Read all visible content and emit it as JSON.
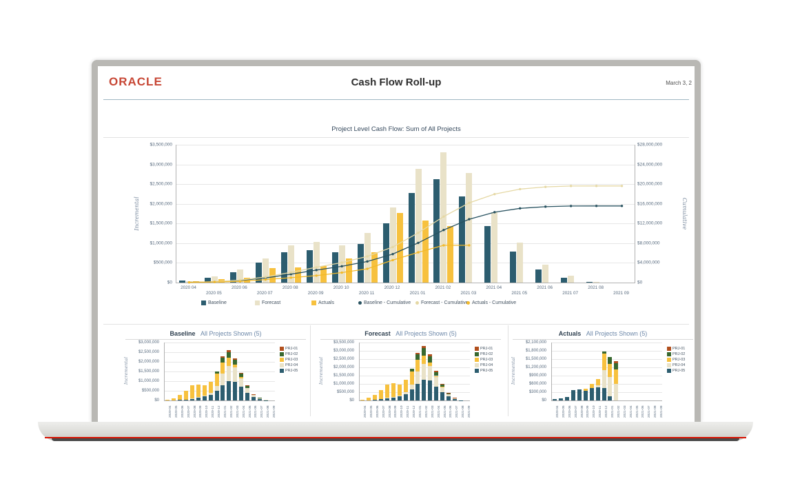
{
  "header": {
    "brand": "ORACLE",
    "title": "Cash Flow Roll-up",
    "date": "March 3, 2"
  },
  "chart_data": [
    {
      "type": "bar",
      "title": "Project Level Cash Flow: Sum of All Projects",
      "ylabel_left": "Incremental",
      "ylabel_right": "Cumulative",
      "ylim_left": [
        0,
        3500000
      ],
      "ylim_right": [
        0,
        28000000
      ],
      "grid": "horizontal",
      "legend_position": "bottom",
      "y_left_ticks": [
        "$3,500,000",
        "$3,000,000",
        "$2,500,000",
        "$2,000,000",
        "$1,500,000",
        "$1,000,000",
        "$500,000",
        "$0"
      ],
      "y_right_ticks": [
        "$28,000,000",
        "$24,000,000",
        "$20,000,000",
        "$16,000,000",
        "$12,000,000",
        "$8,000,000",
        "$4,000,000",
        "$0"
      ],
      "categories": [
        "2020 04",
        "2020 05",
        "2020 06",
        "2020 07",
        "2020 08",
        "2020 09",
        "2020 10",
        "2020 11",
        "2020 12",
        "2021 01",
        "2021 02",
        "2021 03",
        "2021 04",
        "2021 05",
        "2021 06",
        "2021 07",
        "2021 08",
        "2021 09"
      ],
      "bar_series": [
        {
          "name": "Baseline",
          "color": "#2c5d6f",
          "values": [
            50000,
            120000,
            270000,
            500000,
            770000,
            830000,
            770000,
            980000,
            1500000,
            2270000,
            2620000,
            2190000,
            1430000,
            780000,
            340000,
            130000,
            20000,
            0
          ]
        },
        {
          "name": "Forecast",
          "color": "#e9e2c8",
          "values": [
            30000,
            150000,
            330000,
            620000,
            940000,
            1040000,
            950000,
            1260000,
            1900000,
            2890000,
            3300000,
            2780000,
            1780000,
            1010000,
            460000,
            180000,
            10000,
            0
          ]
        },
        {
          "name": "Actuals",
          "color": "#f7c13e",
          "values": [
            40000,
            80000,
            120000,
            370000,
            390000,
            415000,
            610000,
            770000,
            1770000,
            1580000,
            1430000,
            null,
            null,
            null,
            null,
            null,
            null,
            null
          ]
        }
      ],
      "line_series": [
        {
          "name": "Baseline - Cumulative",
          "color": "#27515f",
          "values": [
            50000,
            170000,
            440000,
            940000,
            1710000,
            2540000,
            3310000,
            4290000,
            5790000,
            8060000,
            10680000,
            12870000,
            14300000,
            15080000,
            15420000,
            15550000,
            15570000,
            15570000
          ]
        },
        {
          "name": "Forecast - Cumulative",
          "color": "#e5d8a4",
          "values": [
            30000,
            180000,
            510000,
            1130000,
            2070000,
            3110000,
            4060000,
            5320000,
            7220000,
            10110000,
            13410000,
            16190000,
            17970000,
            18980000,
            19440000,
            19620000,
            19630000,
            19630000
          ]
        },
        {
          "name": "Actuals - Cumulative",
          "color": "#f2b929",
          "values": [
            40000,
            120000,
            240000,
            610000,
            1000000,
            1415000,
            2025000,
            2795000,
            4565000,
            6145000,
            7575000,
            7575000,
            null,
            null,
            null,
            null,
            null,
            null
          ]
        }
      ]
    },
    {
      "type": "bar",
      "stacked": true,
      "title": "Baseline",
      "subtitle": "All Projects Shown (5)",
      "ylabel": "Incremental",
      "ylim": [
        0,
        3000000
      ],
      "grid": "horizontal",
      "legend_position": "right",
      "y_ticks": [
        "$3,000,000",
        "$2,500,000",
        "$2,000,000",
        "$1,500,000",
        "$1,000,000",
        "$500,000",
        "$0"
      ],
      "categories": [
        "2020-04",
        "2020-05",
        "2020-06",
        "2020-07",
        "2020-08",
        "2020-09",
        "2020-10",
        "2020-11",
        "2020-12",
        "2021-01",
        "2021-02",
        "2021-03",
        "2021-04",
        "2021-05",
        "2021-06",
        "2021-07",
        "2021-08",
        "2021-09"
      ],
      "series": [
        {
          "name": "PRJ-01",
          "color": "#b14f1d",
          "values": [
            0,
            0,
            0,
            0,
            0,
            0,
            0,
            0,
            0,
            70000,
            120000,
            90000,
            50000,
            30000,
            10000,
            0,
            0,
            0
          ]
        },
        {
          "name": "PRJ-02",
          "color": "#38682f",
          "values": [
            0,
            0,
            0,
            0,
            0,
            0,
            0,
            0,
            100000,
            250000,
            300000,
            250000,
            180000,
            100000,
            50000,
            20000,
            0,
            0
          ]
        },
        {
          "name": "PRJ-03",
          "color": "#f7c13e",
          "values": [
            50000,
            120000,
            250000,
            450000,
            650000,
            650000,
            530000,
            600000,
            650000,
            550000,
            400000,
            150000,
            50000,
            0,
            0,
            0,
            0,
            0
          ]
        },
        {
          "name": "PRJ-04",
          "color": "#e9e2c8",
          "values": [
            0,
            0,
            0,
            0,
            20000,
            30000,
            40000,
            80000,
            250000,
            600000,
            800000,
            750000,
            450000,
            250000,
            100000,
            40000,
            5000,
            0
          ]
        },
        {
          "name": "PRJ-05",
          "color": "#2c5d6f",
          "values": [
            0,
            0,
            20000,
            50000,
            100000,
            150000,
            200000,
            300000,
            500000,
            800000,
            1000000,
            950000,
            700000,
            400000,
            180000,
            70000,
            15000,
            0
          ]
        }
      ]
    },
    {
      "type": "bar",
      "stacked": true,
      "title": "Forecast",
      "subtitle": "All Projects Shown (5)",
      "ylabel": "Incremental",
      "ylim": [
        0,
        3500000
      ],
      "grid": "horizontal",
      "legend_position": "right",
      "y_ticks": [
        "$3,500,000",
        "$3,000,000",
        "$2,500,000",
        "$2,000,000",
        "$1,500,000",
        "$1,000,000",
        "$500,000",
        "$0"
      ],
      "categories": [
        "2020-04",
        "2020-05",
        "2020-06",
        "2020-07",
        "2020-08",
        "2020-09",
        "2020-10",
        "2020-11",
        "2020-12",
        "2021-01",
        "2021-02",
        "2021-03",
        "2021-04",
        "2021-05",
        "2021-06",
        "2021-07",
        "2021-08",
        "2021-09"
      ],
      "series": [
        {
          "name": "PRJ-01",
          "color": "#b14f1d",
          "values": [
            0,
            0,
            0,
            0,
            0,
            0,
            0,
            0,
            0,
            90000,
            150000,
            130000,
            70000,
            40000,
            20000,
            10000,
            0,
            0
          ]
        },
        {
          "name": "PRJ-02",
          "color": "#38682f",
          "values": [
            0,
            0,
            0,
            0,
            0,
            0,
            0,
            0,
            150000,
            350000,
            450000,
            350000,
            230000,
            150000,
            80000,
            30000,
            0,
            0
          ]
        },
        {
          "name": "PRJ-03",
          "color": "#f7c13e",
          "values": [
            30000,
            150000,
            300000,
            550000,
            790000,
            820000,
            650000,
            780000,
            800000,
            700000,
            500000,
            200000,
            80000,
            20000,
            0,
            0,
            0,
            0
          ]
        },
        {
          "name": "PRJ-04",
          "color": "#e9e2c8",
          "values": [
            0,
            0,
            0,
            0,
            30000,
            40000,
            50000,
            100000,
            300000,
            750000,
            950000,
            900000,
            550000,
            300000,
            130000,
            50000,
            2000,
            0
          ]
        },
        {
          "name": "PRJ-05",
          "color": "#2c5d6f",
          "values": [
            0,
            0,
            30000,
            70000,
            120000,
            180000,
            250000,
            380000,
            650000,
            1000000,
            1250000,
            1200000,
            850000,
            500000,
            230000,
            90000,
            8000,
            0
          ]
        }
      ]
    },
    {
      "type": "bar",
      "stacked": true,
      "title": "Actuals",
      "subtitle": "All Projects Shown (5)",
      "ylabel": "Incremental",
      "ylim": [
        0,
        2100000
      ],
      "grid": "horizontal",
      "legend_position": "right",
      "y_ticks": [
        "$2,100,000",
        "$1,800,000",
        "$1,500,000",
        "$1,200,000",
        "$900,000",
        "$600,000",
        "$300,000",
        "$0"
      ],
      "categories": [
        "2020-04",
        "2020-05",
        "2020-06",
        "2020-07",
        "2020-08",
        "2020-09",
        "2020-10",
        "2020-11",
        "2020-12",
        "2021-01",
        "2021-02",
        "2021-03",
        "2021-04",
        "2021-05",
        "2021-06",
        "2021-07",
        "2021-08",
        "2021-09"
      ],
      "series": [
        {
          "name": "PRJ-01",
          "color": "#b14f1d",
          "values": [
            0,
            0,
            0,
            0,
            0,
            0,
            0,
            0,
            0,
            0,
            80000,
            0,
            0,
            0,
            0,
            0,
            0,
            0
          ]
        },
        {
          "name": "PRJ-02",
          "color": "#38682f",
          "values": [
            0,
            0,
            0,
            0,
            0,
            0,
            0,
            0,
            70000,
            250000,
            220000,
            0,
            0,
            0,
            0,
            0,
            0,
            0
          ]
        },
        {
          "name": "PRJ-03",
          "color": "#f7c13e",
          "values": [
            0,
            0,
            0,
            0,
            0,
            65000,
            160000,
            230000,
            600000,
            480000,
            530000,
            0,
            0,
            0,
            0,
            0,
            0,
            0
          ]
        },
        {
          "name": "PRJ-04",
          "color": "#e9e2c8",
          "values": [
            0,
            0,
            0,
            0,
            0,
            0,
            0,
            60000,
            650000,
            700000,
            600000,
            0,
            0,
            0,
            0,
            0,
            0,
            0
          ]
        },
        {
          "name": "PRJ-05",
          "color": "#2c5d6f",
          "values": [
            40000,
            80000,
            120000,
            370000,
            390000,
            350000,
            450000,
            480000,
            450000,
            150000,
            0,
            0,
            0,
            0,
            0,
            0,
            0,
            0
          ]
        }
      ]
    }
  ]
}
